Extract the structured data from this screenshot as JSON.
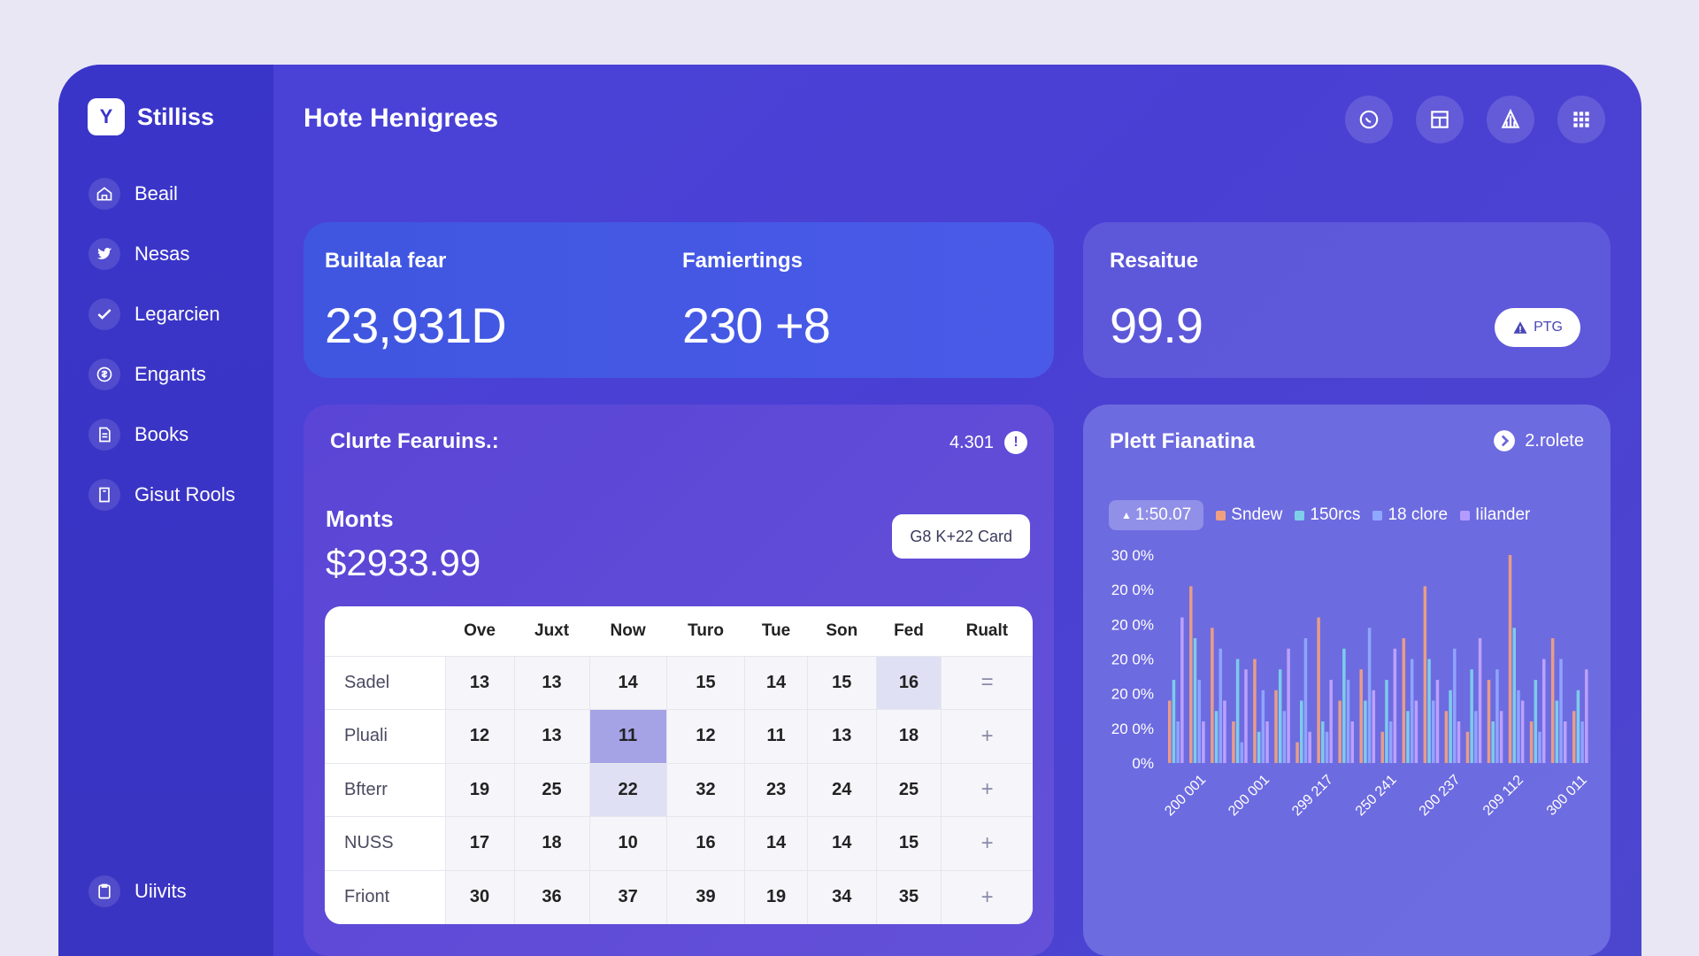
{
  "brand": {
    "name": "Stilliss",
    "logo_letter": "Y"
  },
  "sidebar": {
    "items": [
      {
        "label": "Beail",
        "icon": "home-icon"
      },
      {
        "label": "Nesas",
        "icon": "bird-icon"
      },
      {
        "label": "Legarcien",
        "icon": "check-icon"
      },
      {
        "label": "Engants",
        "icon": "coin-icon"
      },
      {
        "label": "Books",
        "icon": "document-icon"
      },
      {
        "label": "Gisut Rools",
        "icon": "door-icon"
      }
    ],
    "bottom": {
      "label": "Uiivits",
      "icon": "clipboard-icon"
    }
  },
  "header": {
    "title": "Hote Henigrees",
    "icons": [
      "chat-icon",
      "layout-icon",
      "chart-icon",
      "grid-icon"
    ]
  },
  "stats": {
    "a": {
      "label": "Builtala fear",
      "value": "23,931D"
    },
    "b": {
      "label": "Famiertings",
      "value": "230 +8"
    }
  },
  "result": {
    "label": "Resaitue",
    "value": "99.9",
    "badge": "PTG"
  },
  "features": {
    "title": "Clurte Fearuins.:",
    "count": "4.301",
    "mon_label": "Monts",
    "mon_value": "$2933.99",
    "button": "G8 K+22 Card",
    "table": {
      "headers": [
        "Ove",
        "Juxt",
        "Now",
        "Turo",
        "Tue",
        "Son",
        "Fed",
        "Rualt"
      ],
      "rows": [
        {
          "name": "Sadel",
          "cells": [
            "13",
            "13",
            "14",
            "15",
            "14",
            "15",
            "16"
          ],
          "action": "="
        },
        {
          "name": "Pluali",
          "cells": [
            "12",
            "13",
            "11",
            "12",
            "11",
            "13",
            "18"
          ],
          "action": "+"
        },
        {
          "name": "Bfterr",
          "cells": [
            "19",
            "25",
            "22",
            "32",
            "23",
            "24",
            "25"
          ],
          "action": "+"
        },
        {
          "name": "NUSS",
          "cells": [
            "17",
            "18",
            "10",
            "16",
            "14",
            "14",
            "15"
          ],
          "action": "+"
        },
        {
          "name": "Friont",
          "cells": [
            "30",
            "36",
            "37",
            "39",
            "19",
            "34",
            "35"
          ],
          "action": "+"
        }
      ]
    }
  },
  "plot": {
    "title": "Plett Fianatina",
    "link": "2.rolete",
    "chip": "1:50.07",
    "legend": [
      {
        "name": "Sndew",
        "color": "#f0a080"
      },
      {
        "name": "150rcs",
        "color": "#7ed0e8"
      },
      {
        "name": "18 clore",
        "color": "#8fa8ff"
      },
      {
        "name": "Iilander",
        "color": "#b49bff"
      }
    ]
  },
  "colors": {
    "frame": "#4a43d8",
    "sidebar": "#3a35c9",
    "stats": "#4257e2",
    "accent": "#ffffff"
  },
  "chart_data": {
    "type": "bar",
    "y_ticks": [
      "30 0%",
      "20 0%",
      "20 0%",
      "20 0%",
      "20 0%",
      "20 0%",
      "0%"
    ],
    "x_ticks": [
      "200 001",
      "200 001",
      "299 217",
      "250 241",
      "200 237",
      "209 112",
      "300 011"
    ],
    "ylim": [
      0,
      100
    ],
    "series": [
      {
        "name": "Sndew",
        "color": "#f3a27f",
        "values": [
          30,
          85,
          65,
          20,
          50,
          35,
          10,
          70,
          30,
          45,
          15,
          60,
          85,
          25,
          15,
          40,
          100,
          20,
          60,
          25
        ]
      },
      {
        "name": "150rcs",
        "color": "#7fd4ec",
        "values": [
          40,
          60,
          25,
          50,
          15,
          45,
          30,
          20,
          55,
          30,
          40,
          25,
          50,
          35,
          45,
          20,
          65,
          40,
          30,
          35
        ]
      },
      {
        "name": "18 clore",
        "color": "#93aaff",
        "values": [
          20,
          40,
          55,
          10,
          35,
          25,
          60,
          15,
          40,
          65,
          20,
          50,
          30,
          55,
          25,
          45,
          35,
          15,
          50,
          20
        ]
      },
      {
        "name": "Iilander",
        "color": "#c3a6ff",
        "values": [
          70,
          20,
          30,
          45,
          20,
          55,
          15,
          40,
          20,
          35,
          55,
          30,
          40,
          20,
          60,
          25,
          30,
          50,
          20,
          45
        ]
      }
    ]
  }
}
